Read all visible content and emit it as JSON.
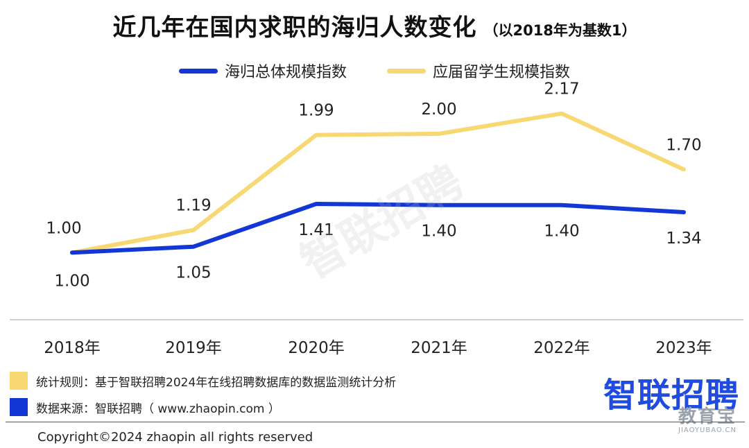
{
  "title": "近几年在国内求职的海归人数变化",
  "subtitle": "（以2018年为基数1）",
  "colors": {
    "overseas_total": "#1237d6",
    "fresh_graduates": "#f7d873",
    "note_rule": "#f7d873",
    "note_source": "#1237d6"
  },
  "chart_data": {
    "type": "line",
    "categories": [
      "2018年",
      "2019年",
      "2020年",
      "2021年",
      "2022年",
      "2023年"
    ],
    "series": [
      {
        "name": "海归总体规模指数",
        "values": [
          1.0,
          1.05,
          1.41,
          1.4,
          1.4,
          1.34
        ],
        "labels": [
          "1.00",
          "1.05",
          "1.41",
          "1.40",
          "1.40",
          "1.34"
        ]
      },
      {
        "name": "应届留学生规模指数",
        "values": [
          1.0,
          1.19,
          1.99,
          2.0,
          2.17,
          1.7
        ],
        "labels": [
          "1.00",
          "1.19",
          "1.99",
          "2.00",
          "2.17",
          "1.70"
        ]
      }
    ],
    "ylim": [
      0.5,
      2.6
    ],
    "legend_position": "top-center",
    "grid": false
  },
  "watermark": "智联招聘",
  "notes": {
    "rule": "统计规则：基于智联招聘2024年在线招聘数据库的数据监测统计分析",
    "source": "数据来源：智联招聘（ www.zhaopin.com ）"
  },
  "logo_text": "智联招聘",
  "copyright": "Copyright©2024 zhaopin all rights reserved",
  "corner_mark": {
    "main": "教育宝",
    "sub": "JIAOYUBAO.CN"
  }
}
